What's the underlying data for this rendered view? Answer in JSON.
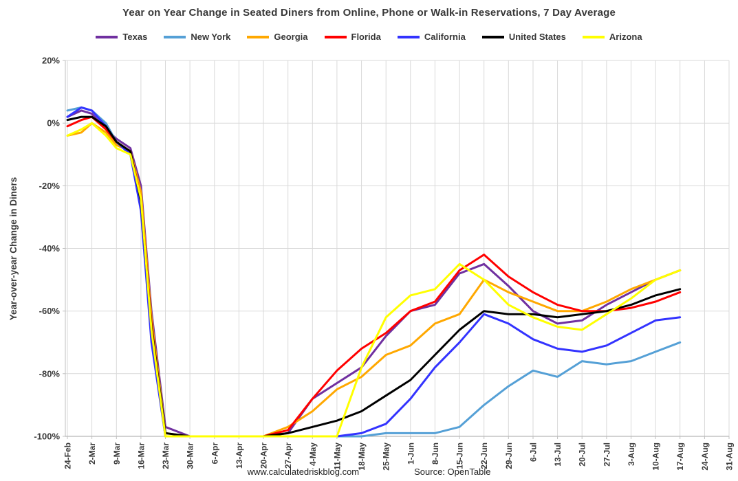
{
  "title": "Year on Year Change in Seated Diners from Online, Phone or Walk-in Reservations, 7 Day Average",
  "footer": {
    "site": "www.calculatedriskblog.com",
    "source": "Source: OpenTable"
  },
  "chart_data": {
    "type": "line",
    "title": "Year on Year Change in Seated Diners from Online, Phone or Walk-in Reservations, 7 Day Average",
    "xlabel": "",
    "ylabel": "Year-over-year Change in Diners",
    "ylim": [
      -100,
      20
    ],
    "grid": true,
    "legend_position": "top",
    "y_ticks": [
      20,
      0,
      -20,
      -40,
      -60,
      -80,
      -100
    ],
    "y_tick_labels": [
      "20%",
      "0%",
      "-20%",
      "-40%",
      "-60%",
      "-80%",
      "-100%"
    ],
    "x_tick_labels": [
      "24-Feb",
      "2-Mar",
      "9-Mar",
      "16-Mar",
      "23-Mar",
      "30-Mar",
      "6-Apr",
      "13-Apr",
      "20-Apr",
      "27-Apr",
      "4-May",
      "11-May",
      "18-May",
      "25-May",
      "1-Jun",
      "8-Jun",
      "15-Jun",
      "22-Jun",
      "29-Jun",
      "6-Jul",
      "13-Jul",
      "20-Jul",
      "27-Jul",
      "3-Aug",
      "10-Aug",
      "17-Aug",
      "24-Aug",
      "31-Aug"
    ],
    "x_tick_days": [
      0,
      7,
      14,
      21,
      28,
      35,
      42,
      49,
      56,
      63,
      70,
      77,
      84,
      91,
      98,
      105,
      112,
      119,
      126,
      133,
      140,
      147,
      154,
      161,
      168,
      175,
      182,
      189
    ],
    "x_days": [
      0,
      4,
      7,
      11,
      14,
      18,
      21,
      24,
      28,
      35,
      42,
      49,
      56,
      63,
      70,
      77,
      84,
      91,
      98,
      105,
      112,
      119,
      126,
      133,
      140,
      147,
      154,
      161,
      168,
      175
    ],
    "series": [
      {
        "name": "Texas",
        "color": "#7030A0",
        "values": [
          2,
          4,
          3,
          -2,
          -5,
          -8,
          -20,
          -60,
          -97,
          -100,
          -100,
          -100,
          -100,
          -99,
          -88,
          -83,
          -78,
          -68,
          -60,
          -58,
          -48,
          -45,
          -52,
          -60,
          -64,
          -63,
          -58,
          -54,
          -50,
          -47
        ]
      },
      {
        "name": "New York",
        "color": "#55A0D6",
        "values": [
          4,
          5,
          4,
          0,
          -6,
          -10,
          -25,
          -65,
          -100,
          -100,
          -100,
          -100,
          -100,
          -100,
          -100,
          -100,
          -100,
          -99,
          -99,
          -99,
          -97,
          -90,
          -84,
          -79,
          -81,
          -76,
          -77,
          -76,
          -73,
          -70
        ]
      },
      {
        "name": "Georgia",
        "color": "#FFA800",
        "values": [
          -4,
          -3,
          0,
          -3,
          -7,
          -9,
          -22,
          -62,
          -99,
          -100,
          -100,
          -100,
          -100,
          -97,
          -92,
          -85,
          -81,
          -74,
          -71,
          -64,
          -61,
          -50,
          -54,
          -57,
          -60,
          -60,
          -57,
          -53,
          -50,
          -47
        ]
      },
      {
        "name": "Florida",
        "color": "#FF0000",
        "values": [
          -1,
          1,
          2,
          -2,
          -6,
          -9,
          -24,
          -64,
          -100,
          -100,
          -100,
          -100,
          -100,
          -98,
          -88,
          -79,
          -72,
          -67,
          -60,
          -57,
          -47,
          -42,
          -49,
          -54,
          -58,
          -60,
          -60,
          -59,
          -57,
          -54
        ]
      },
      {
        "name": "California",
        "color": "#3333FF",
        "values": [
          2,
          5,
          4,
          -1,
          -6,
          -10,
          -28,
          -70,
          -100,
          -100,
          -100,
          -100,
          -100,
          -100,
          -100,
          -100,
          -99,
          -96,
          -88,
          -78,
          -70,
          -61,
          -64,
          -69,
          -72,
          -73,
          -71,
          -67,
          -63,
          -62
        ]
      },
      {
        "name": "United States",
        "color": "#000000",
        "values": [
          1,
          2,
          2,
          -1,
          -6,
          -9,
          -25,
          -65,
          -99,
          -100,
          -100,
          -100,
          -100,
          -99,
          -97,
          -95,
          -92,
          -87,
          -82,
          -74,
          -66,
          -60,
          -61,
          -61,
          -62,
          -61,
          -60,
          -58,
          -55,
          -53
        ]
      },
      {
        "name": "Arizona",
        "color": "#FFFF00",
        "values": [
          -4,
          -2,
          0,
          -4,
          -8,
          -10,
          -24,
          -66,
          -100,
          -100,
          -100,
          -100,
          -100,
          -100,
          -100,
          -100,
          -78,
          -62,
          -55,
          -53,
          -45,
          -50,
          -58,
          -62,
          -65,
          -66,
          -61,
          -56,
          -50,
          -47
        ]
      }
    ]
  }
}
